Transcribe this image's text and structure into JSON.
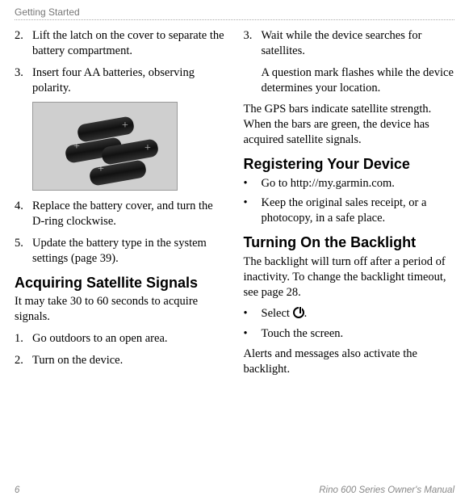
{
  "header": "Getting Started",
  "left": {
    "items": [
      {
        "num": "2.",
        "text": "Lift the latch on the cover to separate the battery compartment."
      },
      {
        "num": "3.",
        "text": "Insert four AA batteries, observing polarity."
      },
      {
        "num": "4.",
        "text": "Replace the battery cover, and turn the D-ring clockwise."
      },
      {
        "num": "5.",
        "text": "Update the battery type in the system settings (page 39)."
      }
    ],
    "h2a": "Acquiring Satellite Signals",
    "para1": "It may take 30 to 60 seconds to acquire signals.",
    "steps": [
      {
        "num": "1.",
        "text": "Go outdoors to an open area."
      },
      {
        "num": "2.",
        "text": "Turn on the device."
      }
    ]
  },
  "right": {
    "step3": {
      "num": "3.",
      "text": "Wait while the device searches for satellites."
    },
    "step3b": "A question mark flashes while the device determines your location.",
    "para1": "The GPS bars indicate satellite strength. When the bars are green, the device has acquired satellite signals.",
    "h2a": "Registering Your Device",
    "reg": [
      "Go to http://my.garmin.com.",
      "Keep the original sales receipt, or a photocopy, in a safe place."
    ],
    "h2b": "Turning On the Backlight",
    "para2": "The backlight will turn off after a period of inactivity. To change the backlight timeout, see page 28.",
    "bl": [
      "Select ",
      "Touch the screen."
    ],
    "blSuffix": ".",
    "para3": "Alerts and messages also activate the backlight."
  },
  "footer": {
    "page": "6",
    "title": "Rino 600 Series Owner's Manual"
  },
  "bullet": "•"
}
